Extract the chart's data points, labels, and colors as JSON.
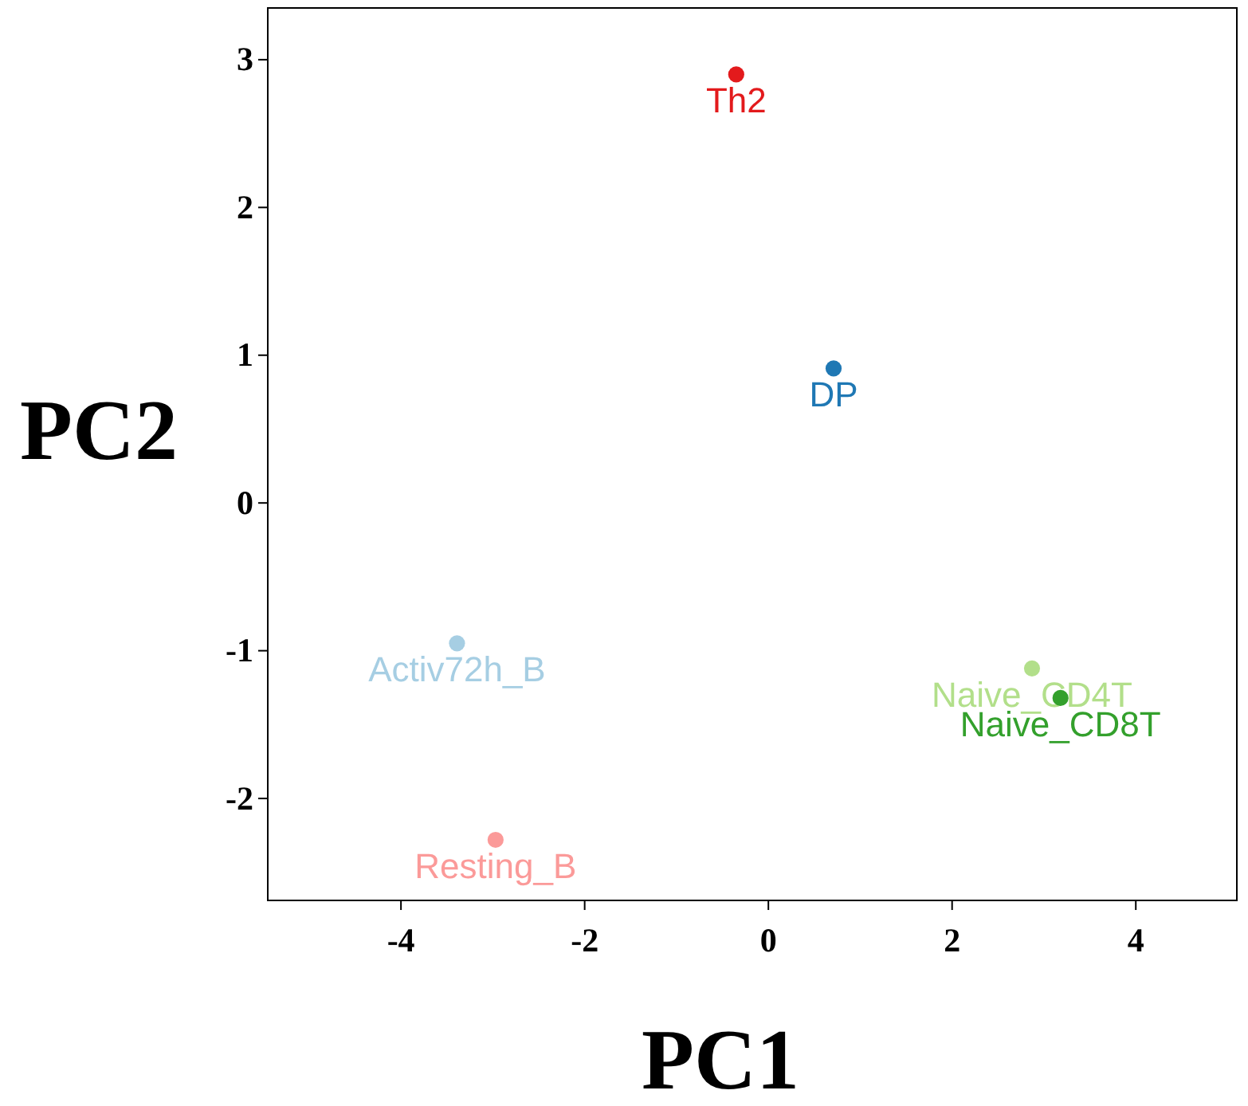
{
  "chart_data": {
    "type": "scatter",
    "xlabel": "PC1",
    "ylabel": "PC2",
    "xlim": [
      -5.45,
      5.1
    ],
    "ylim": [
      -2.69,
      3.35
    ],
    "xticks": [
      -4,
      -2,
      0,
      2,
      4
    ],
    "yticks": [
      -2,
      -1,
      0,
      1,
      2,
      3
    ],
    "grid": false,
    "marker": "circle",
    "series": [
      {
        "name": "Th2",
        "color": "#e31a1c",
        "x": [
          -0.35
        ],
        "values": [
          2.9
        ]
      },
      {
        "name": "DP",
        "color": "#1f78b4",
        "x": [
          0.71
        ],
        "values": [
          0.91
        ]
      },
      {
        "name": "Activ72h_B",
        "color": "#a6cee3",
        "x": [
          -3.39
        ],
        "values": [
          -0.95
        ]
      },
      {
        "name": "Naive_CD4T",
        "color": "#b2df8a",
        "x": [
          2.87
        ],
        "values": [
          -1.12
        ]
      },
      {
        "name": "Naive_CD8T",
        "color": "#33a02c",
        "x": [
          3.18
        ],
        "values": [
          -1.32
        ]
      },
      {
        "name": "Resting_B",
        "color": "#fb9a99",
        "x": [
          -2.97
        ],
        "values": [
          -2.28
        ]
      }
    ]
  }
}
